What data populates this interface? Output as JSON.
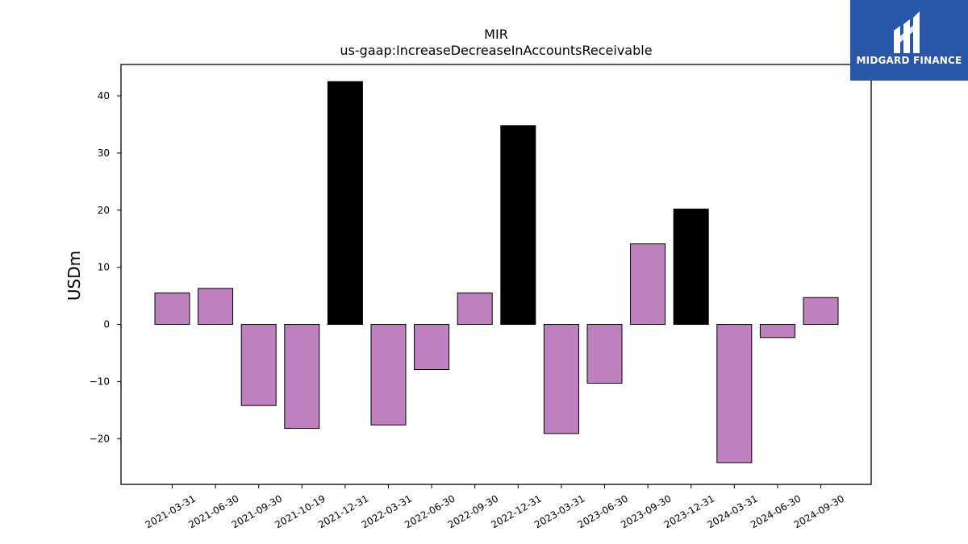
{
  "brand": {
    "name": "MIDGARD FINANCE",
    "color": "#2a56a8"
  },
  "chart_data": {
    "type": "bar",
    "title": "MIR",
    "subtitle": "us-gaap:IncreaseDecreaseInAccountsReceivable",
    "xlabel": "",
    "ylabel": "USDm",
    "ylim": [
      -28,
      45.5
    ],
    "yticks": [
      -20,
      -10,
      0,
      10,
      20,
      30,
      40
    ],
    "ytick_labels": [
      "−20",
      "−10",
      "0",
      "10",
      "20",
      "30",
      "40"
    ],
    "grid": false,
    "categories": [
      "2021-03-31",
      "2021-06-30",
      "2021-09-30",
      "2021-10-19",
      "2021-12-31",
      "2022-03-31",
      "2022-06-30",
      "2022-09-30",
      "2022-12-31",
      "2023-03-31",
      "2023-06-30",
      "2023-09-30",
      "2023-12-31",
      "2024-03-31",
      "2024-06-30",
      "2024-09-30"
    ],
    "values": [
      5.5,
      6.3,
      -14.2,
      -18.2,
      42.5,
      -17.6,
      -7.9,
      5.5,
      34.8,
      -19.1,
      -10.3,
      14.1,
      20.2,
      -24.2,
      -2.3,
      4.7
    ],
    "highlight": [
      false,
      false,
      false,
      false,
      true,
      false,
      false,
      false,
      true,
      false,
      false,
      false,
      true,
      false,
      false,
      false
    ],
    "colors": {
      "bar": "#bf80bf",
      "highlight": "#000000",
      "edge": "#000000"
    }
  }
}
